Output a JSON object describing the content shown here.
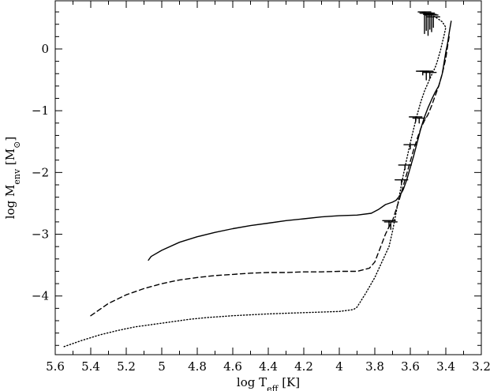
{
  "chart_data": {
    "type": "line",
    "x_reversed": true,
    "xlim": [
      5.6,
      3.2
    ],
    "ylim": [
      -4.95,
      0.78
    ],
    "x_ticks": [
      "5.6",
      "5.4",
      "5.2",
      "5",
      "4.8",
      "4.6",
      "4.4",
      "4.2",
      "4",
      "3.8",
      "3.6",
      "3.4",
      "3.2"
    ],
    "y_ticks": [
      "0",
      "−1",
      "−2",
      "−3",
      "−4"
    ],
    "xlabel": {
      "prefix": "log T",
      "sub": "eff",
      "suffix": " [K]"
    },
    "ylabel": {
      "prefix": "log M",
      "sub": "env",
      "suffix": " [M",
      "sun": "⊙",
      "close": "]"
    },
    "series": [
      {
        "style": "solid",
        "x": [
          5.075,
          5.06,
          5.0,
          4.9,
          4.8,
          4.7,
          4.6,
          4.5,
          4.4,
          4.3,
          4.2,
          4.1,
          4.0,
          3.9,
          3.82,
          3.78,
          3.74,
          3.7,
          3.68,
          3.66,
          3.64,
          3.62,
          3.6,
          3.58,
          3.56,
          3.54,
          3.52,
          3.5,
          3.48,
          3.46,
          3.44,
          3.42,
          3.41,
          3.4,
          3.39,
          3.38,
          3.37
        ],
        "y": [
          -3.42,
          -3.36,
          -3.26,
          -3.13,
          -3.04,
          -2.97,
          -2.91,
          -2.86,
          -2.82,
          -2.78,
          -2.75,
          -2.72,
          -2.7,
          -2.69,
          -2.66,
          -2.6,
          -2.52,
          -2.48,
          -2.45,
          -2.38,
          -2.28,
          -2.12,
          -1.92,
          -1.72,
          -1.5,
          -1.28,
          -1.1,
          -0.95,
          -0.82,
          -0.7,
          -0.6,
          -0.4,
          -0.22,
          -0.05,
          0.1,
          0.28,
          0.45
        ]
      },
      {
        "style": "dashed",
        "x": [
          5.4,
          5.3,
          5.2,
          5.1,
          5.0,
          4.9,
          4.8,
          4.7,
          4.6,
          4.5,
          4.4,
          4.3,
          4.2,
          4.1,
          4.0,
          3.9,
          3.83,
          3.8,
          3.78,
          3.76,
          3.74,
          3.72,
          3.7,
          3.68,
          3.66,
          3.64,
          3.62,
          3.6,
          3.58,
          3.56,
          3.54,
          3.52,
          3.5,
          3.48,
          3.46,
          3.44,
          3.42,
          3.4,
          3.39,
          3.38
        ],
        "y": [
          -4.32,
          -4.12,
          -3.98,
          -3.88,
          -3.8,
          -3.74,
          -3.7,
          -3.67,
          -3.65,
          -3.63,
          -3.62,
          -3.62,
          -3.61,
          -3.61,
          -3.6,
          -3.6,
          -3.55,
          -3.45,
          -3.3,
          -3.15,
          -3.0,
          -2.88,
          -2.78,
          -2.6,
          -2.42,
          -2.22,
          -2.02,
          -1.82,
          -1.62,
          -1.44,
          -1.28,
          -1.16,
          -1.06,
          -0.92,
          -0.76,
          -0.6,
          -0.4,
          -0.15,
          0.05,
          0.22
        ]
      },
      {
        "style": "dotted",
        "x": [
          5.55,
          5.45,
          5.35,
          5.25,
          5.15,
          5.05,
          4.95,
          4.85,
          4.75,
          4.6,
          4.4,
          4.2,
          4.0,
          3.92,
          3.9,
          3.85,
          3.8,
          3.76,
          3.72,
          3.7,
          3.68,
          3.66,
          3.64,
          3.62,
          3.6,
          3.58,
          3.56,
          3.54,
          3.52,
          3.5,
          3.49,
          3.48,
          3.47,
          3.46,
          3.45,
          3.44,
          3.43,
          3.42,
          3.41,
          3.4,
          3.42,
          3.45,
          3.48,
          3.51,
          3.54
        ],
        "y": [
          -4.82,
          -4.72,
          -4.63,
          -4.56,
          -4.5,
          -4.46,
          -4.42,
          -4.38,
          -4.35,
          -4.32,
          -4.29,
          -4.27,
          -4.25,
          -4.22,
          -4.18,
          -3.95,
          -3.7,
          -3.45,
          -3.2,
          -2.95,
          -2.65,
          -2.35,
          -2.05,
          -1.78,
          -1.52,
          -1.28,
          -1.05,
          -0.85,
          -0.68,
          -0.55,
          -0.48,
          -0.42,
          -0.36,
          -0.3,
          -0.22,
          -0.12,
          -0.02,
          0.1,
          0.22,
          0.35,
          0.44,
          0.5,
          0.55,
          0.58,
          0.6
        ]
      }
    ],
    "spikes": [
      {
        "x": 3.52,
        "y0": 0.6,
        "y1": 0.25
      },
      {
        "x": 3.51,
        "y0": 0.58,
        "y1": 0.3
      },
      {
        "x": 3.5,
        "y0": 0.58,
        "y1": 0.22
      },
      {
        "x": 3.49,
        "y0": 0.56,
        "y1": 0.32
      },
      {
        "x": 3.48,
        "y0": 0.55,
        "y1": 0.28
      },
      {
        "x": 3.47,
        "y0": 0.52,
        "y1": 0.35
      },
      {
        "x": 3.53,
        "y0": -0.36,
        "y1": -0.42
      },
      {
        "x": 3.51,
        "y0": -0.36,
        "y1": -0.5
      },
      {
        "x": 3.49,
        "y0": -0.38,
        "y1": -0.48
      },
      {
        "x": 3.57,
        "y0": -1.1,
        "y1": -1.18
      },
      {
        "x": 3.55,
        "y0": -1.12,
        "y1": -1.2
      },
      {
        "x": 3.6,
        "y0": -1.55,
        "y1": -1.62
      },
      {
        "x": 3.63,
        "y0": -1.88,
        "y1": -1.95
      },
      {
        "x": 3.65,
        "y0": -2.12,
        "y1": -2.18
      },
      {
        "x": 3.71,
        "y0": -2.8,
        "y1": -2.92
      },
      {
        "x": 3.72,
        "y0": -2.78,
        "y1": -2.88
      }
    ]
  }
}
